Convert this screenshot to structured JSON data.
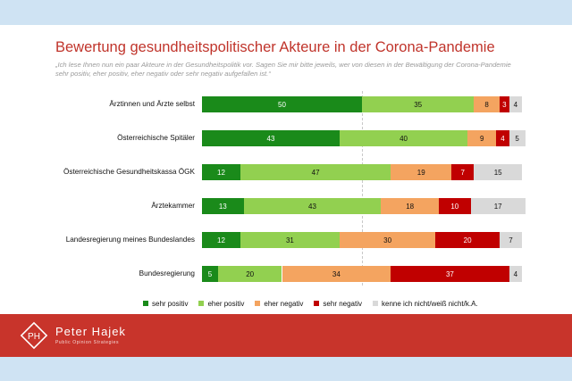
{
  "header": {
    "title": "Bewertung gesundheitspolitischer Akteure in der Corona-Pandemie",
    "subtitle": "„Ich lese Ihnen nun ein paar Akteure in der Gesundheitspolitik vor. Sagen Sie mir bitte jeweils, wer von diesen in der Bewältigung der Corona-Pandemie sehr positiv, eher positiv, eher negativ oder sehr negativ aufgefallen ist.“"
  },
  "colors": {
    "sehr_positiv": "#1a8a1a",
    "eher_positiv": "#92d050",
    "eher_negativ": "#f4a460",
    "sehr_negativ": "#c00000",
    "kenne_nicht": "#d9d9d9",
    "brand_red": "#c8342b",
    "band_blue": "#cfe3f3"
  },
  "chart_data": {
    "type": "bar",
    "orientation": "horizontal",
    "stacked": true,
    "title": "Bewertung gesundheitspolitischer Akteure in der Corona-Pandemie",
    "categories": [
      "Ärztinnen und Ärzte selbst",
      "Österreichische Spitäler",
      "Österreichische Gesundheitskassa ÖGK",
      "Ärztekammer",
      "Landesregierung meines Bundeslandes",
      "Bundesregierung"
    ],
    "series": [
      {
        "name": "sehr positiv",
        "values": [
          50,
          43,
          12,
          13,
          12,
          5
        ]
      },
      {
        "name": "eher positiv",
        "values": [
          35,
          40,
          47,
          43,
          31,
          20
        ]
      },
      {
        "name": "eher negativ",
        "values": [
          8,
          9,
          19,
          18,
          30,
          34
        ]
      },
      {
        "name": "sehr negativ",
        "values": [
          3,
          4,
          7,
          10,
          20,
          37
        ]
      },
      {
        "name": "kenne ich nicht/weiß nicht/k.A.",
        "values": [
          4,
          5,
          15,
          17,
          7,
          4
        ]
      }
    ],
    "xlim": [
      0,
      100
    ],
    "legend_position": "bottom"
  },
  "footer": {
    "brand_name": "Peter Hajek",
    "brand_sub": "Public Opinion Strategies",
    "logo_letters": "PH"
  }
}
